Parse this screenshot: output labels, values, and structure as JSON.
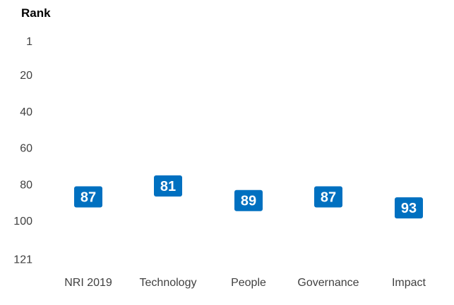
{
  "chart_data": {
    "type": "scatter",
    "title": "",
    "xlabel": "",
    "ylabel": "Rank",
    "y_inverted": true,
    "ylim": [
      1,
      121
    ],
    "yticks": [
      "1",
      "20",
      "40",
      "60",
      "80",
      "100",
      "121"
    ],
    "grid": false,
    "legend": "none",
    "marker_color": "#0070C0",
    "label_color": "#ffffff",
    "categories": [
      "NRI 2019",
      "Technology",
      "People",
      "Governance",
      "Impact"
    ],
    "values": [
      87,
      81,
      89,
      87,
      93
    ],
    "data_labels": [
      "87",
      "81",
      "89",
      "87",
      "93"
    ]
  }
}
